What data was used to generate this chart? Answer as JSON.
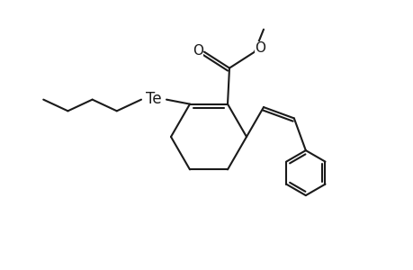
{
  "bg_color": "#ffffff",
  "line_color": "#1a1a1a",
  "line_width": 1.5,
  "Te_label": "Te",
  "O_label1": "O",
  "O_label2": "O",
  "font_size": 11
}
